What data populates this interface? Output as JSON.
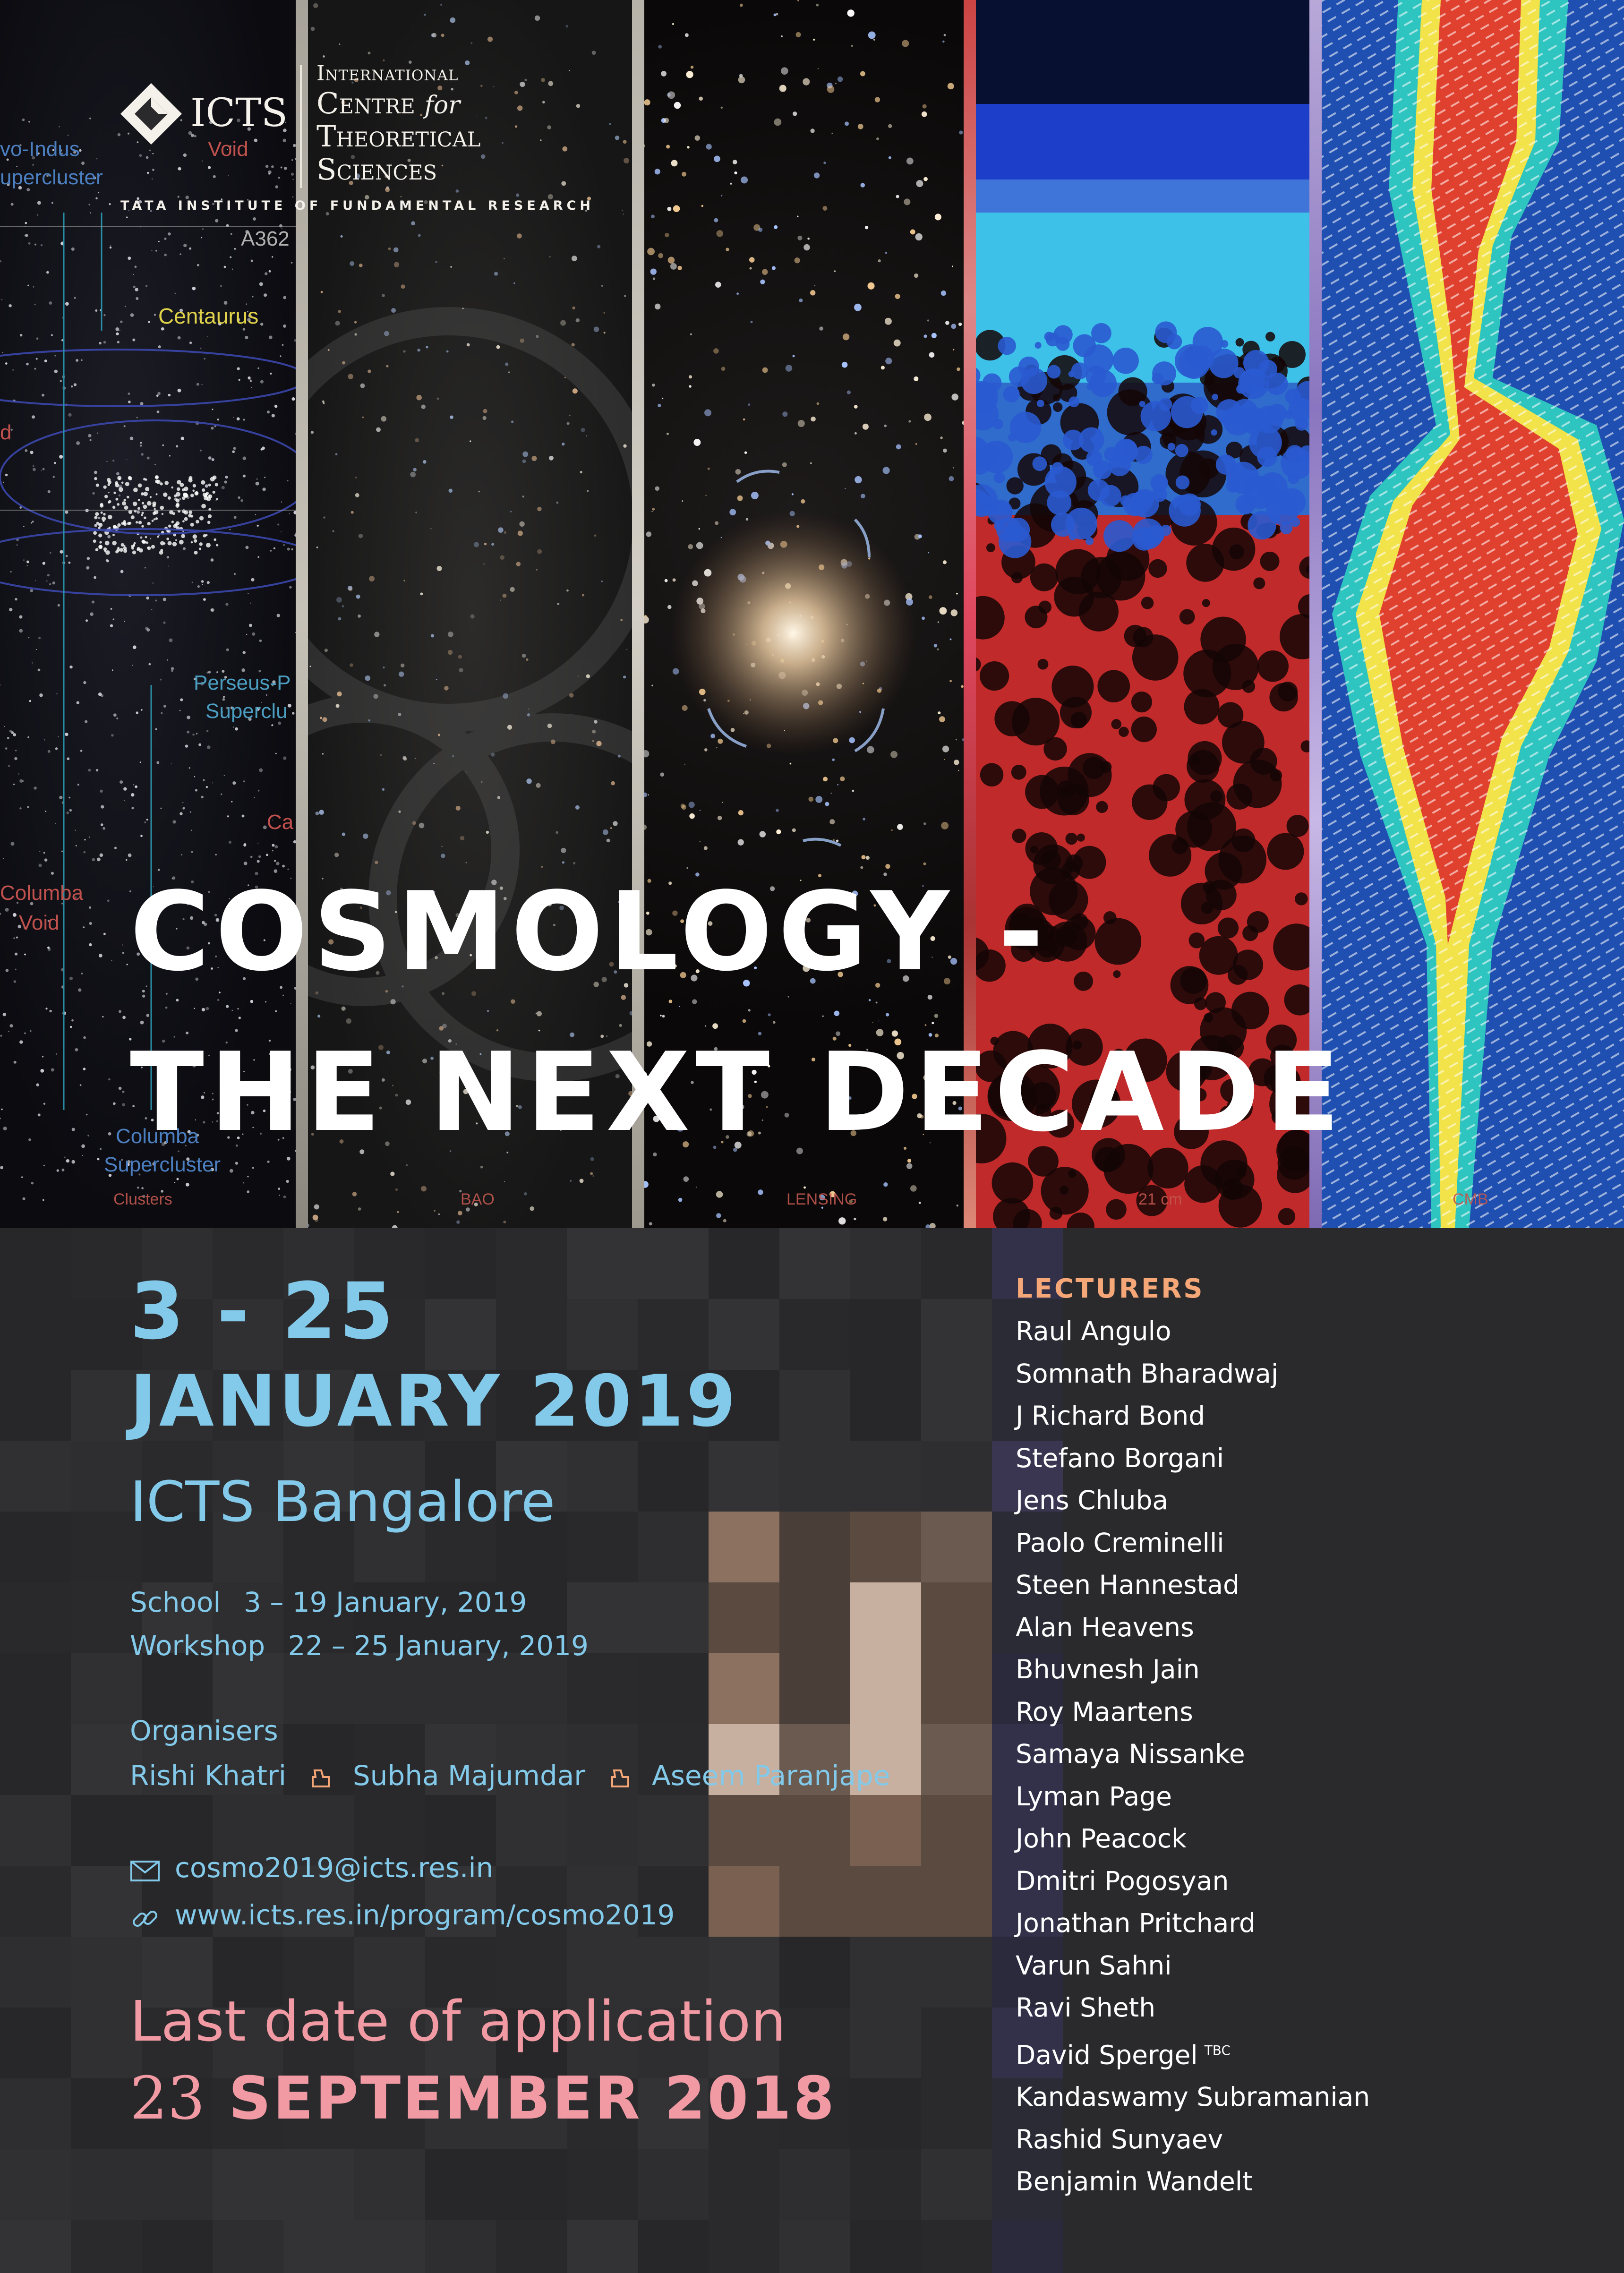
{
  "logo": {
    "abbr": "ICTS",
    "line1": "International",
    "line2_a": "Centre",
    "line2_b": "for",
    "line3": "Theoretical",
    "line4": "Sciences",
    "tagline": "TATA INSTITUTE OF FUNDAMENTAL RESEARCH"
  },
  "panels": [
    {
      "label": "Clusters"
    },
    {
      "label": "BAO"
    },
    {
      "label": "LENSING"
    },
    {
      "label": "21 cm"
    },
    {
      "label": "CMB"
    }
  ],
  "map_labels": {
    "pavo_indus_1": "vo-Indus",
    "pavo_indus_2": "upercluster",
    "void_top": "Void",
    "a3627": "A362",
    "centaurus": "Centaurus",
    "perseus_1": "Perseus-P",
    "perseus_2": "Superclu",
    "ca": "Ca",
    "columba_void_1": "Columba",
    "columba_void_2": "Void",
    "columba_sc_1": "Columba",
    "columba_sc_2": "Supercluster"
  },
  "title": {
    "line1": "COSMOLOGY -",
    "line2": "THE NEXT DECADE"
  },
  "dates": {
    "range": "3 - 25",
    "month_year": "JANUARY 2019",
    "venue": "ICTS Bangalore"
  },
  "schedule": [
    {
      "label": "School",
      "dates": "3 – 19 January, 2019"
    },
    {
      "label": "Workshop",
      "dates": "22 – 25 January, 2019"
    }
  ],
  "organisers": {
    "heading": "Organisers",
    "names": [
      "Rishi Khatri",
      "Subha Majumdar",
      "Aseem Paranjape"
    ]
  },
  "contact": {
    "email": "cosmo2019@icts.res.in",
    "url": "www.icts.res.in/program/cosmo2019"
  },
  "deadline": {
    "line1": "Last date of application",
    "day": "23",
    "month_year": "SEPTEMBER 2018"
  },
  "lecturers": {
    "heading": "LECTURERS",
    "tbc": "TBC",
    "names": [
      "Raul Angulo",
      "Somnath Bharadwaj",
      "J Richard Bond",
      "Stefano Borgani",
      "Jens Chluba",
      "Paolo Creminelli",
      "Steen Hannestad",
      "Alan Heavens",
      "Bhuvnesh Jain",
      "Roy Maartens",
      "Samaya Nissanke",
      "Lyman Page",
      "John Peacock",
      "Dmitri Pogosyan",
      "Jonathan Pritchard",
      "Varun Sahni",
      "Ravi Sheth",
      "David Spergel",
      "Kandaswamy Subramanian",
      "Rashid Sunyaev",
      "Benjamin Wandelt"
    ]
  },
  "colors": {
    "accent_blue": "#83c9e9",
    "accent_pink": "#f19aa4",
    "accent_orange": "#f5a777",
    "background": "#2a2a2c"
  }
}
